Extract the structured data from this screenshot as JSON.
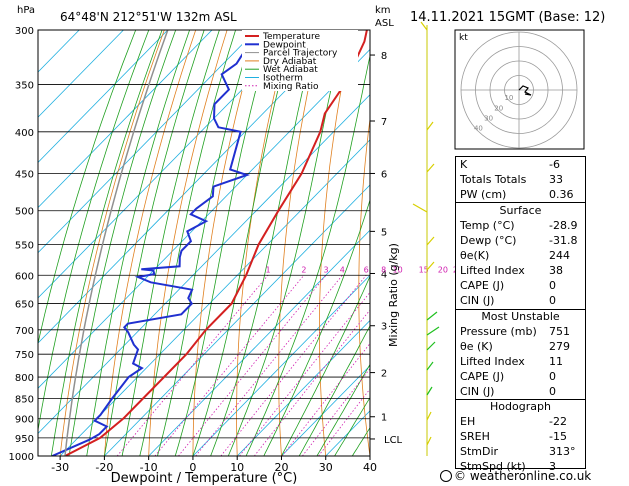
{
  "header": {
    "pressure_unit": "hPa",
    "location": "64°48'N  212°51'W  132m  ASL",
    "height_unit": "km",
    "height_unit2": "ASL",
    "datetime": "14.11.2021  15GMT  (Base: 12)"
  },
  "chart_data": {
    "type": "line",
    "title": "Skew-T log-P diagram",
    "xlabel": "Dewpoint / Temperature (°C)",
    "ylabel": "hPa",
    "right_axis_label": "Mixing Ratio (g/kg)",
    "xlim": [
      -35,
      40
    ],
    "x_ticks": [
      "-30",
      "-20",
      "-10",
      "0",
      "10",
      "20",
      "30",
      "40"
    ],
    "pressure_levels": [
      "300",
      "350",
      "400",
      "450",
      "500",
      "550",
      "600",
      "650",
      "700",
      "750",
      "800",
      "850",
      "900",
      "950",
      "1000"
    ],
    "height_km_labels": [
      {
        "p": 322,
        "label": "8"
      },
      {
        "p": 388,
        "label": "7"
      },
      {
        "p": 450,
        "label": "6"
      },
      {
        "p": 530,
        "label": "5"
      },
      {
        "p": 597,
        "label": "4"
      },
      {
        "p": 692,
        "label": "3"
      },
      {
        "p": 790,
        "label": "2"
      },
      {
        "p": 895,
        "label": "1"
      },
      {
        "p": 953,
        "label": "LCL"
      }
    ],
    "mixing_ratio_labels": [
      "1",
      "2",
      "3",
      "4",
      "6",
      "8",
      "10",
      "15",
      "20",
      "25"
    ],
    "legend": [
      "Temperature",
      "Dewpoint",
      "Parcel Trajectory",
      "Dry Adiabat",
      "Wet Adiabat",
      "Isotherm",
      "Mixing Ratio"
    ],
    "legend_colors": [
      "#d42020",
      "#2030d0",
      "#909090",
      "#e08020",
      "#20a020",
      "#20b0e0",
      "#d020b0"
    ],
    "series": [
      {
        "name": "Temperature",
        "points": [
          [
            -28.9,
            1000
          ],
          [
            -25,
            950
          ],
          [
            -24,
            900
          ],
          [
            -24,
            850
          ],
          [
            -24,
            800
          ],
          [
            -24,
            750
          ],
          [
            -25,
            700
          ],
          [
            -25,
            650
          ],
          [
            -28,
            600
          ],
          [
            -32,
            550
          ],
          [
            -35,
            500
          ],
          [
            -38,
            450
          ],
          [
            -43,
            400
          ],
          [
            -46,
            380
          ],
          [
            -48,
            350
          ],
          [
            -53,
            310
          ],
          [
            -55,
            300
          ]
        ]
      },
      {
        "name": "Dewpoint",
        "points": [
          [
            -31.8,
            1000
          ],
          [
            -27,
            955
          ],
          [
            -26,
            940
          ],
          [
            -26,
            920
          ],
          [
            -30,
            905
          ],
          [
            -30,
            890
          ],
          [
            -31,
            850
          ],
          [
            -32,
            800
          ],
          [
            -31,
            780
          ],
          [
            -34,
            770
          ],
          [
            -36,
            740
          ],
          [
            -38,
            730
          ],
          [
            -42,
            705
          ],
          [
            -44,
            695
          ],
          [
            -44,
            688
          ],
          [
            -34,
            670
          ],
          [
            -34,
            650
          ],
          [
            -36,
            640
          ],
          [
            -37,
            625
          ],
          [
            -48,
            612
          ],
          [
            -52,
            603
          ],
          [
            -49,
            598
          ],
          [
            -50,
            592
          ],
          [
            -53,
            590
          ],
          [
            -45,
            585
          ],
          [
            -47,
            570
          ],
          [
            -48,
            560
          ],
          [
            -48,
            545
          ],
          [
            -51,
            530
          ],
          [
            -49,
            515
          ],
          [
            -54,
            505
          ],
          [
            -54,
            497
          ],
          [
            -53,
            480
          ],
          [
            -55,
            467
          ],
          [
            -50,
            452
          ],
          [
            -55,
            445
          ],
          [
            -61,
            400
          ],
          [
            -67,
            395
          ],
          [
            -70,
            385
          ],
          [
            -73,
            370
          ],
          [
            -73,
            355
          ],
          [
            -78,
            340
          ],
          [
            -77,
            330
          ],
          [
            -78,
            318
          ],
          [
            -79,
            305
          ],
          [
            -78,
            300
          ]
        ]
      }
    ]
  },
  "hodograph": {
    "label": "kt",
    "ring_labels": [
      "10",
      "20",
      "30",
      "40"
    ]
  },
  "indices": {
    "k_label": "K",
    "k": "-6",
    "tt_label": "Totals Totals",
    "tt": "33",
    "pw_label": "PW (cm)",
    "pw": "0.36"
  },
  "surface": {
    "title": "Surface",
    "rows": [
      {
        "label": "Temp (°C)",
        "value": "-28.9"
      },
      {
        "label": "Dewp (°C)",
        "value": "-31.8"
      },
      {
        "label": "θe(K)",
        "value": "244"
      },
      {
        "label": "Lifted Index",
        "value": "38"
      },
      {
        "label": "CAPE (J)",
        "value": "0"
      },
      {
        "label": "CIN (J)",
        "value": "0"
      }
    ]
  },
  "unstable": {
    "title": "Most Unstable",
    "rows": [
      {
        "label": "Pressure (mb)",
        "value": "751"
      },
      {
        "label": "θe (K)",
        "value": "279"
      },
      {
        "label": "Lifted Index",
        "value": "11"
      },
      {
        "label": "CAPE (J)",
        "value": "0"
      },
      {
        "label": "CIN (J)",
        "value": "0"
      }
    ]
  },
  "hodo_table": {
    "title": "Hodograph",
    "rows": [
      {
        "label": "EH",
        "value": "-22"
      },
      {
        "label": "SREH",
        "value": "-15"
      },
      {
        "label": "StmDir",
        "value": "313°"
      },
      {
        "label": "StmSpd (kt)",
        "value": "3"
      }
    ]
  },
  "credit": "© weatheronline.co.uk"
}
